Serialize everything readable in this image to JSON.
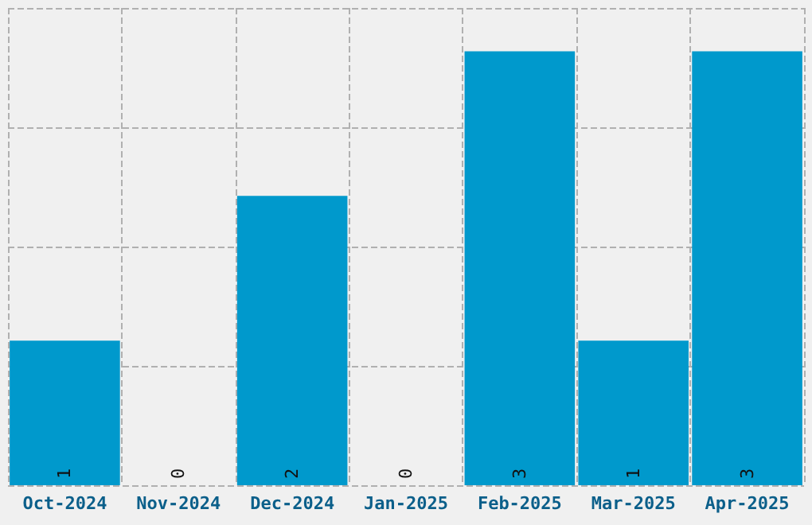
{
  "chart_data": {
    "type": "bar",
    "categories": [
      "Oct-2024",
      "Nov-2024",
      "Dec-2024",
      "Jan-2025",
      "Feb-2025",
      "Mar-2025",
      "Apr-2025"
    ],
    "values": [
      1,
      0,
      2,
      0,
      3,
      1,
      3
    ],
    "color": "#0099cc",
    "data_labels": true,
    "grid": true,
    "ylim": [
      0,
      3.3
    ],
    "yticks": [
      {
        "value": 0,
        "label": null
      },
      {
        "value": 0.825,
        "label": null
      },
      {
        "value": 1.65,
        "label": null
      },
      {
        "value": 2.475,
        "label": null
      },
      {
        "value": 3.3,
        "label": null
      }
    ],
    "tick_labels": "x"
  }
}
